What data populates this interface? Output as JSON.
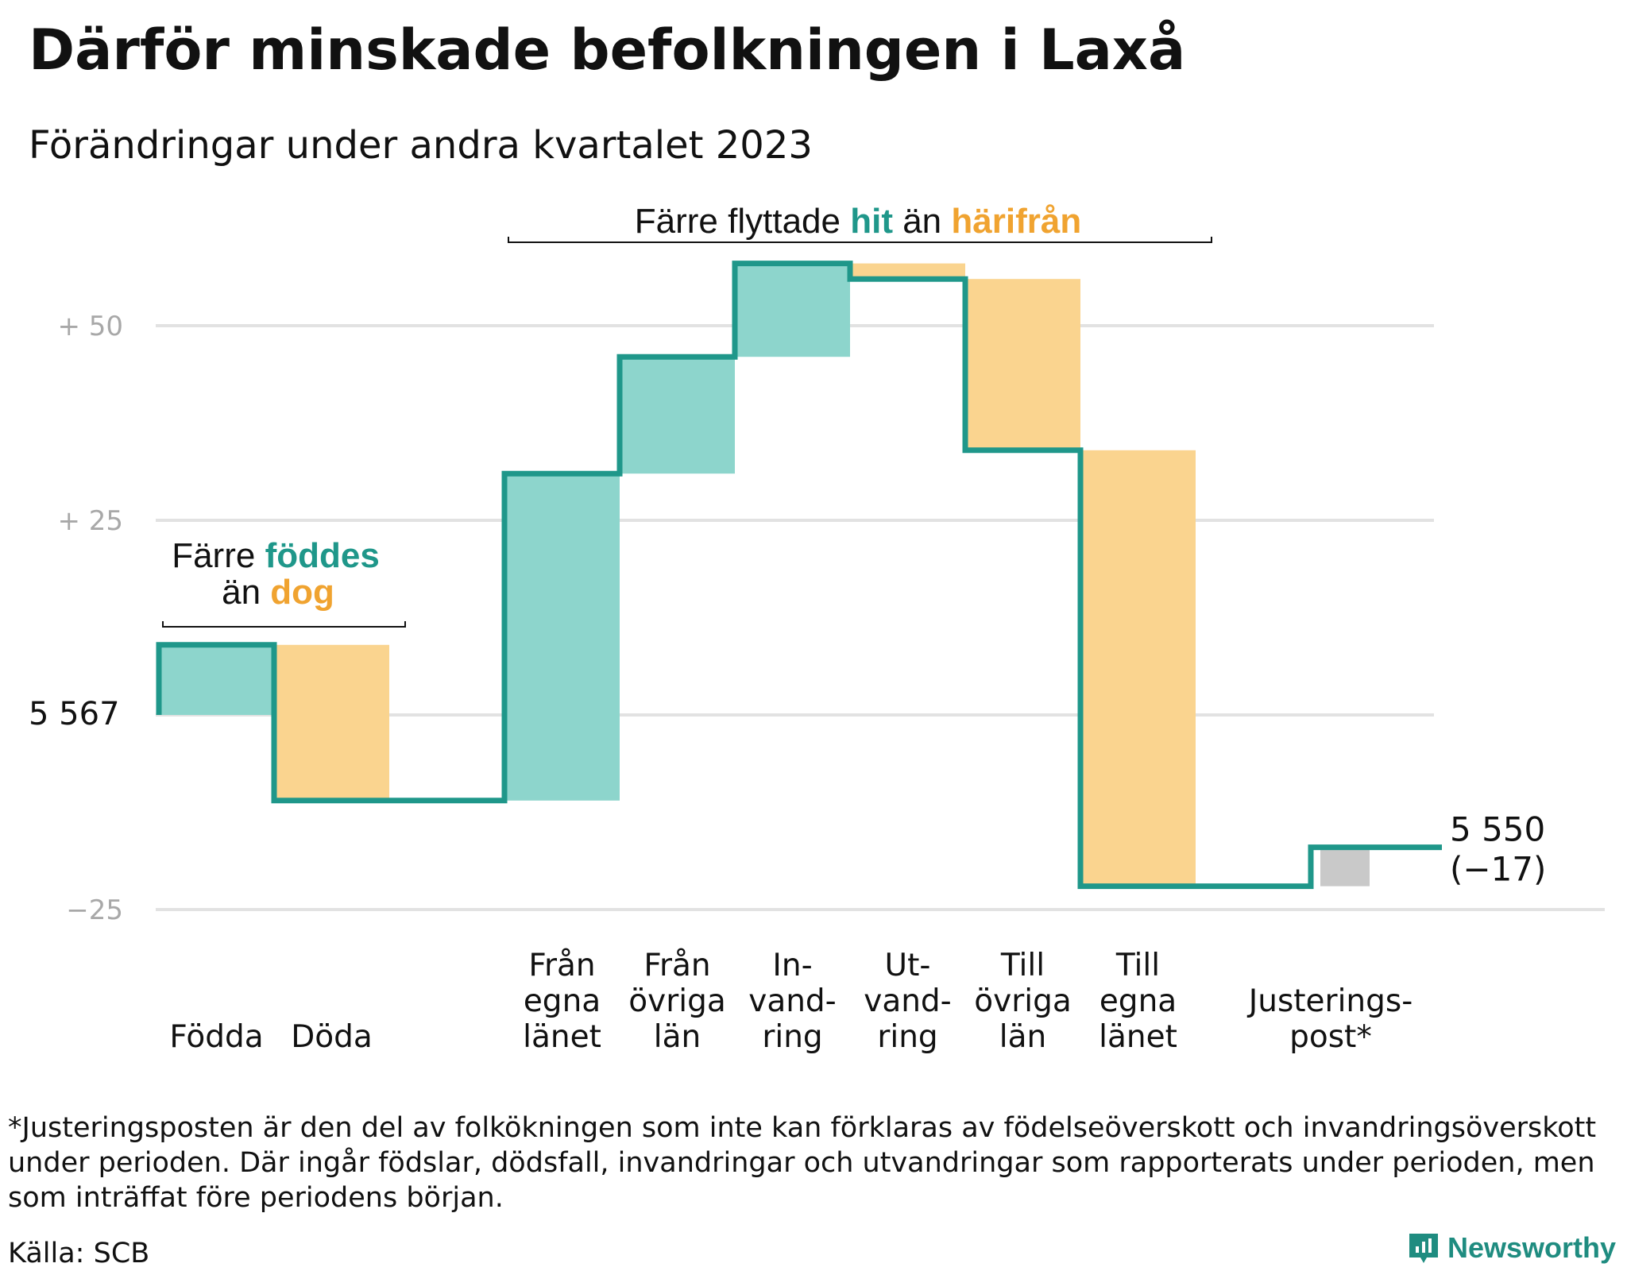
{
  "title": "Därför minskade befolkningen i Laxå",
  "subtitle": "Förändringar under andra kvartalet 2023",
  "chart_data": {
    "type": "waterfall",
    "start_value": 5567,
    "start_label": "5  567",
    "end_value": 5550,
    "end_label": "5 550",
    "change_label": "(−17)",
    "yticks": [
      {
        "value": 50,
        "label": "+  50"
      },
      {
        "value": 25,
        "label": "+  25"
      },
      {
        "value": 0,
        "label": "5  567"
      },
      {
        "value": -25,
        "label": "−25"
      }
    ],
    "ylim": [
      -25,
      58
    ],
    "grid": true,
    "steps": [
      {
        "lines": [
          "Födda"
        ],
        "delta": 9,
        "kind": "in"
      },
      {
        "lines": [
          "Döda"
        ],
        "delta": -20,
        "kind": "out"
      },
      {
        "lines": [],
        "delta": 0,
        "kind": "gap"
      },
      {
        "lines": [
          "Från",
          "egna",
          "länet"
        ],
        "delta": 42,
        "kind": "in"
      },
      {
        "lines": [
          "Från",
          "övriga",
          "län"
        ],
        "delta": 15,
        "kind": "in"
      },
      {
        "lines": [
          "In-",
          "vand-",
          "ring"
        ],
        "delta": 12,
        "kind": "in"
      },
      {
        "lines": [
          "Ut-",
          "vand-",
          "ring"
        ],
        "delta": -2,
        "kind": "out"
      },
      {
        "lines": [
          "Till",
          "övriga",
          "län"
        ],
        "delta": -22,
        "kind": "out"
      },
      {
        "lines": [
          "Till",
          "egna",
          "länet"
        ],
        "delta": -56,
        "kind": "out"
      },
      {
        "lines": [],
        "delta": 0,
        "kind": "gap"
      },
      {
        "lines": [
          "Justerings-",
          "post*"
        ],
        "delta": 5,
        "kind": "adjust"
      }
    ],
    "annotations": {
      "births": {
        "l1_plain": "Färre ",
        "l1_accent": "föddes",
        "l2_plain": "än ",
        "l2_accent": "dog"
      },
      "moves": {
        "plain1": "Färre flyttade ",
        "accent1": "hit",
        "plain2": " än ",
        "accent2": "härifrån"
      }
    },
    "colors": {
      "in": "#8dd5cc",
      "out": "#fad48f",
      "adjust": "#c9c9c9",
      "line": "#1f978a",
      "accent_in": "#1f978a",
      "accent_out": "#f0a330",
      "grid": "#e2e2e2"
    }
  },
  "footnote": "*Justeringsposten är den del av folkökningen som inte kan förklaras av födelseöverskott och invandringsöverskott under perioden. Där ingår födslar, dödsfall, invandringar och utvandringar som rapporterats under perioden, men som inträffat före periodens början.",
  "source": "Källa: SCB",
  "brand": {
    "name": "Newsworthy",
    "icon": "bar-chart-speech-icon"
  }
}
